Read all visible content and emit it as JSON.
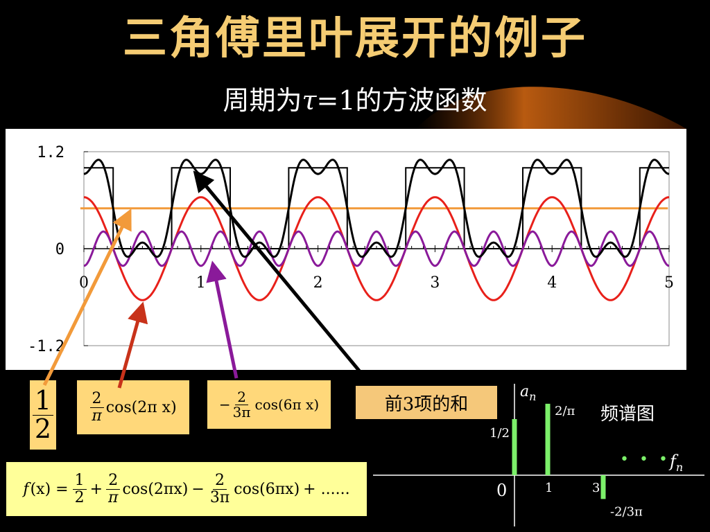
{
  "slide": {
    "title": "三角傅里叶展开的例子",
    "subtitle_pre": "周期为",
    "subtitle_tau": "τ",
    "subtitle_post": "=1的方波函数"
  },
  "formula_boxes": {
    "half": {
      "num": "1",
      "den": "2"
    },
    "cos2": {
      "num": "2",
      "den": "π",
      "expr": "cos(2π x)"
    },
    "cos6": {
      "sign": "−",
      "num": "2",
      "den": "3π",
      "expr": "cos(6π x)"
    },
    "sum3_label": "前3项的和",
    "series": {
      "lhs": "f",
      "lhs_arg": "(x) =",
      "t1_num": "1",
      "t1_den": "2",
      "op1": "+",
      "t2_num": "2",
      "t2_den": "π",
      "t2_expr": "cos(2πx)",
      "op2": "−",
      "t3_num": "2",
      "t3_den": "3π",
      "t3_expr": "cos(6πx)",
      "tail": "+ ......"
    }
  },
  "chart_data": [
    {
      "type": "line",
      "xlim": [
        0,
        5
      ],
      "ylim": [
        -1.2,
        1.2
      ],
      "x_ticks": [
        "0",
        "1",
        "2",
        "3",
        "4",
        "5"
      ],
      "y_ticks": [
        "1.2",
        "0",
        "-1.2"
      ],
      "grid": false,
      "series": [
        {
          "id": "square_wave",
          "color": "#000000",
          "function": "square wave, period 1, value 1 for x mod 1 in [-0.25, 0.25], else 0"
        },
        {
          "id": "dc_term",
          "color": "#f29a3a",
          "function": "1/2"
        },
        {
          "id": "fundamental",
          "color": "#e8201a",
          "function": "(2/π)·cos(2πx)"
        },
        {
          "id": "third_harmonic",
          "color": "#8a1a9a",
          "function": "-(2/(3π))·cos(6πx)"
        },
        {
          "id": "partial_sum_3",
          "color": "#000000",
          "function": "1/2 + (2/π)·cos(2πx) - (2/(3π))·cos(6πx)"
        }
      ],
      "pointer_colors": {
        "dc": "#f29a3a",
        "fundamental": "#c8321a",
        "third": "#8a1a9a",
        "sum": "#000000"
      }
    },
    {
      "type": "bar",
      "title": "频谱图",
      "y_label": "a",
      "y_label_sub": "n",
      "x_label": "f",
      "x_label_sub": "n",
      "origin_label": "0",
      "bar_color": "#7cf06a",
      "categories": [
        "0",
        "1",
        "3"
      ],
      "values": [
        0.5,
        0.6366,
        -0.2122
      ],
      "value_labels": [
        "1/2",
        "2/π",
        "-2/3π"
      ],
      "ellipsis": "• • •"
    }
  ]
}
